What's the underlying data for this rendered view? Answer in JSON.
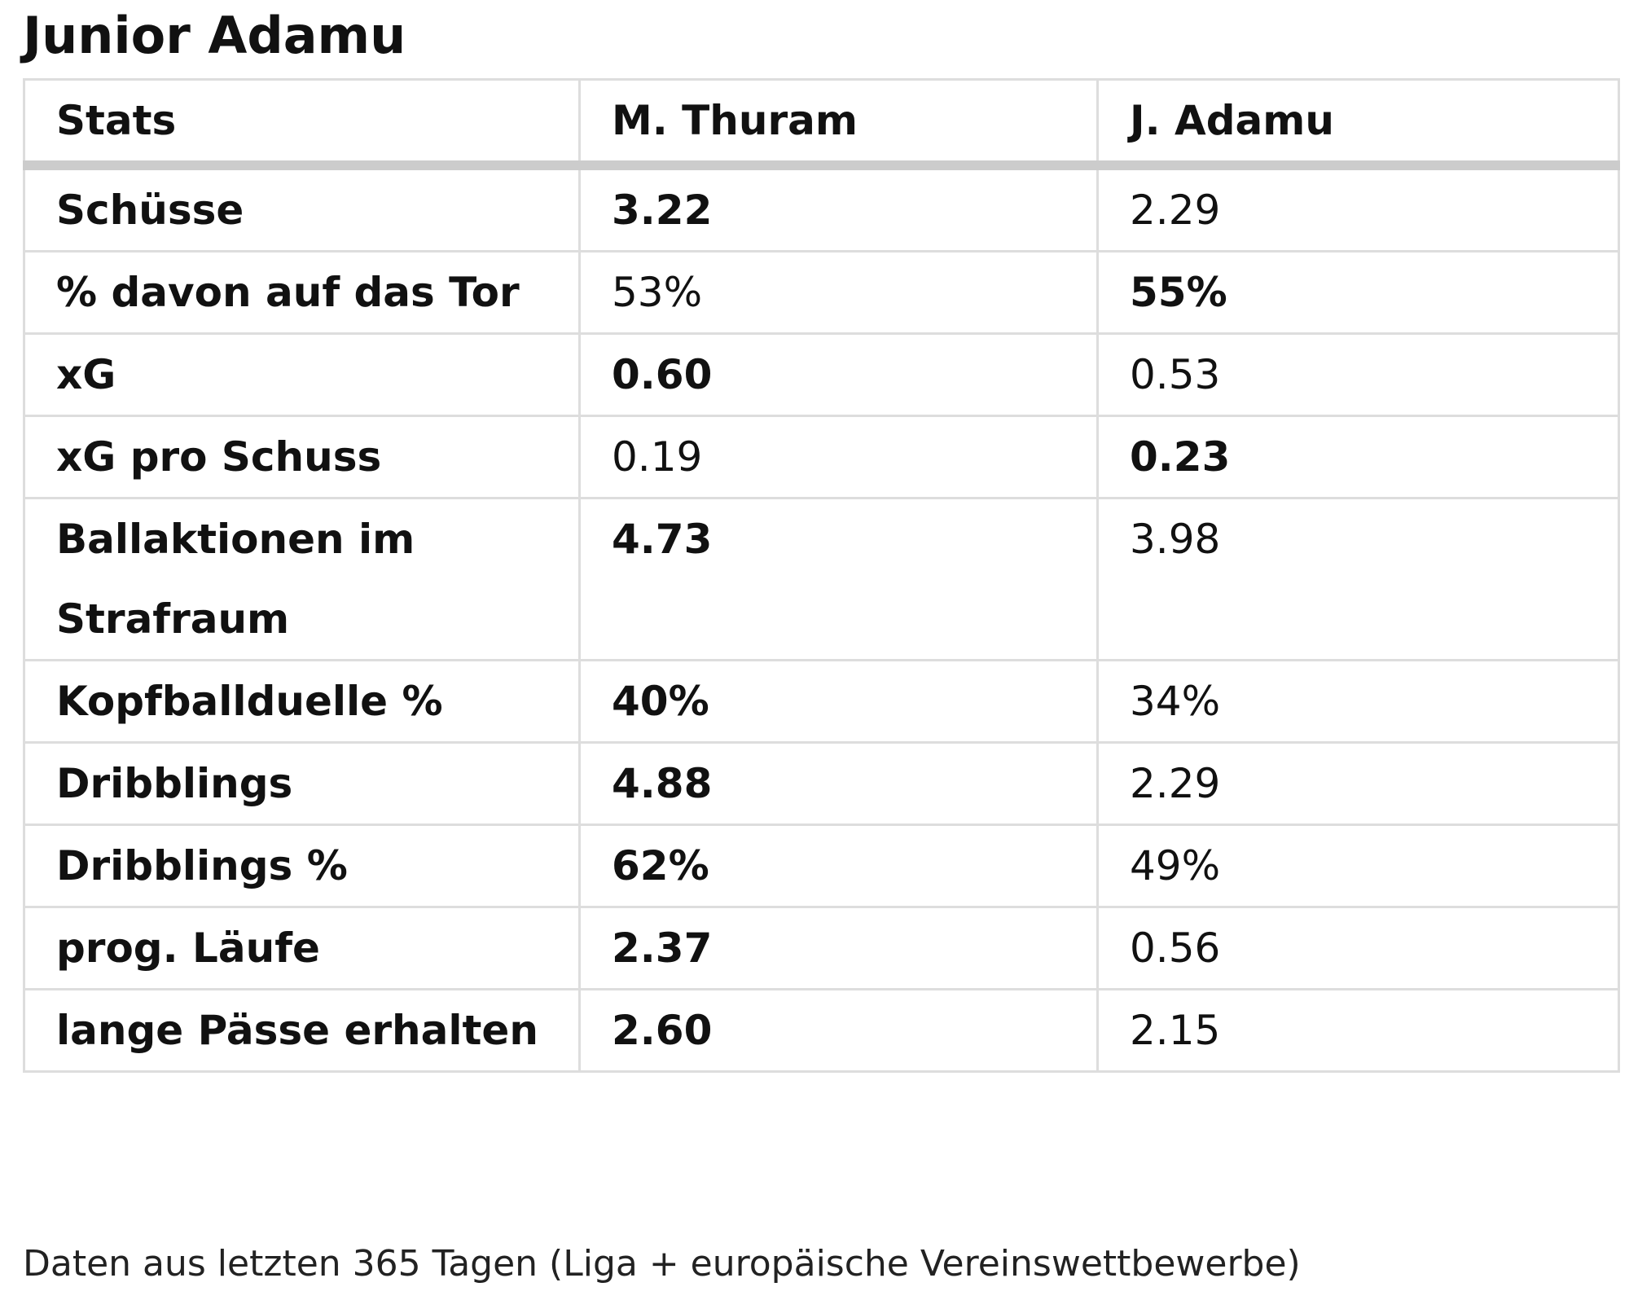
{
  "header": {
    "title": "Junior Adamu"
  },
  "table": {
    "columns": [
      "Stats",
      "M. Thuram",
      "J. Adamu"
    ],
    "rows": [
      {
        "label": "Schüsse",
        "cells": [
          {
            "text": "3.22",
            "bold": true
          },
          {
            "text": "2.29",
            "bold": false
          }
        ]
      },
      {
        "label": "% davon auf das Tor",
        "cells": [
          {
            "text": "53%",
            "bold": false
          },
          {
            "text": "55%",
            "bold": true
          }
        ]
      },
      {
        "label": "xG",
        "cells": [
          {
            "text": "0.60",
            "bold": true
          },
          {
            "text": "0.53",
            "bold": false
          }
        ]
      },
      {
        "label": "xG pro Schuss",
        "cells": [
          {
            "text": "0.19",
            "bold": false
          },
          {
            "text": "0.23",
            "bold": true
          }
        ]
      },
      {
        "label": "Ballaktionen im Strafraum",
        "cells": [
          {
            "text": "4.73",
            "bold": true
          },
          {
            "text": "3.98",
            "bold": false
          }
        ]
      },
      {
        "label": "Kopfballduelle %",
        "cells": [
          {
            "text": "40%",
            "bold": true
          },
          {
            "text": "34%",
            "bold": false
          }
        ]
      },
      {
        "label": "Dribblings",
        "cells": [
          {
            "text": "4.88",
            "bold": true
          },
          {
            "text": "2.29",
            "bold": false
          }
        ]
      },
      {
        "label": "Dribblings %",
        "cells": [
          {
            "text": "62%",
            "bold": true
          },
          {
            "text": "49%",
            "bold": false
          }
        ]
      },
      {
        "label": "prog. Läufe",
        "cells": [
          {
            "text": "2.37",
            "bold": true
          },
          {
            "text": "0.56",
            "bold": false
          }
        ]
      },
      {
        "label": "lange Pässe erhalten",
        "cells": [
          {
            "text": "2.60",
            "bold": true
          },
          {
            "text": "2.15",
            "bold": false
          }
        ]
      }
    ]
  },
  "footer": "Daten aus letzten 365 Tagen (Liga + europäische Vereinswettbewerbe)"
}
